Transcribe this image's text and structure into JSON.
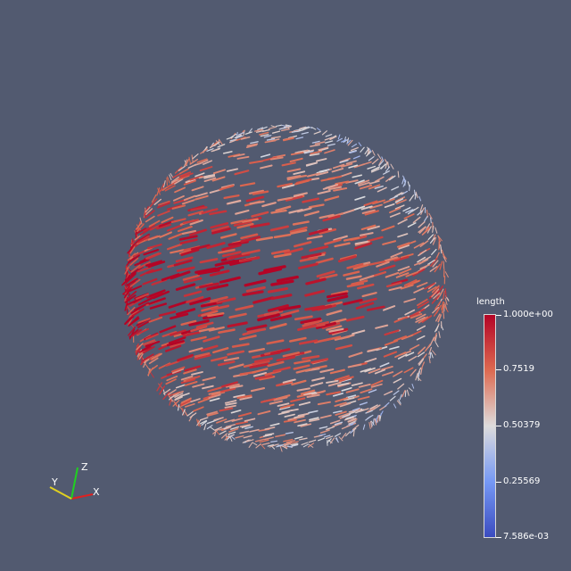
{
  "legend": {
    "title": "length",
    "ticks": [
      "1.000e+00",
      "0.7519",
      "0.50379",
      "0.25569",
      "7.586e-03"
    ],
    "colormap": [
      "#b40426",
      "#dd6a51",
      "#dddcdc",
      "#7699f5",
      "#3b4cc0"
    ]
  },
  "axes": {
    "x": "X",
    "y": "Y",
    "z": "Z"
  },
  "colors": {
    "background": "#525a70"
  },
  "scene": {
    "object": "sphere-vector-glyphs"
  }
}
